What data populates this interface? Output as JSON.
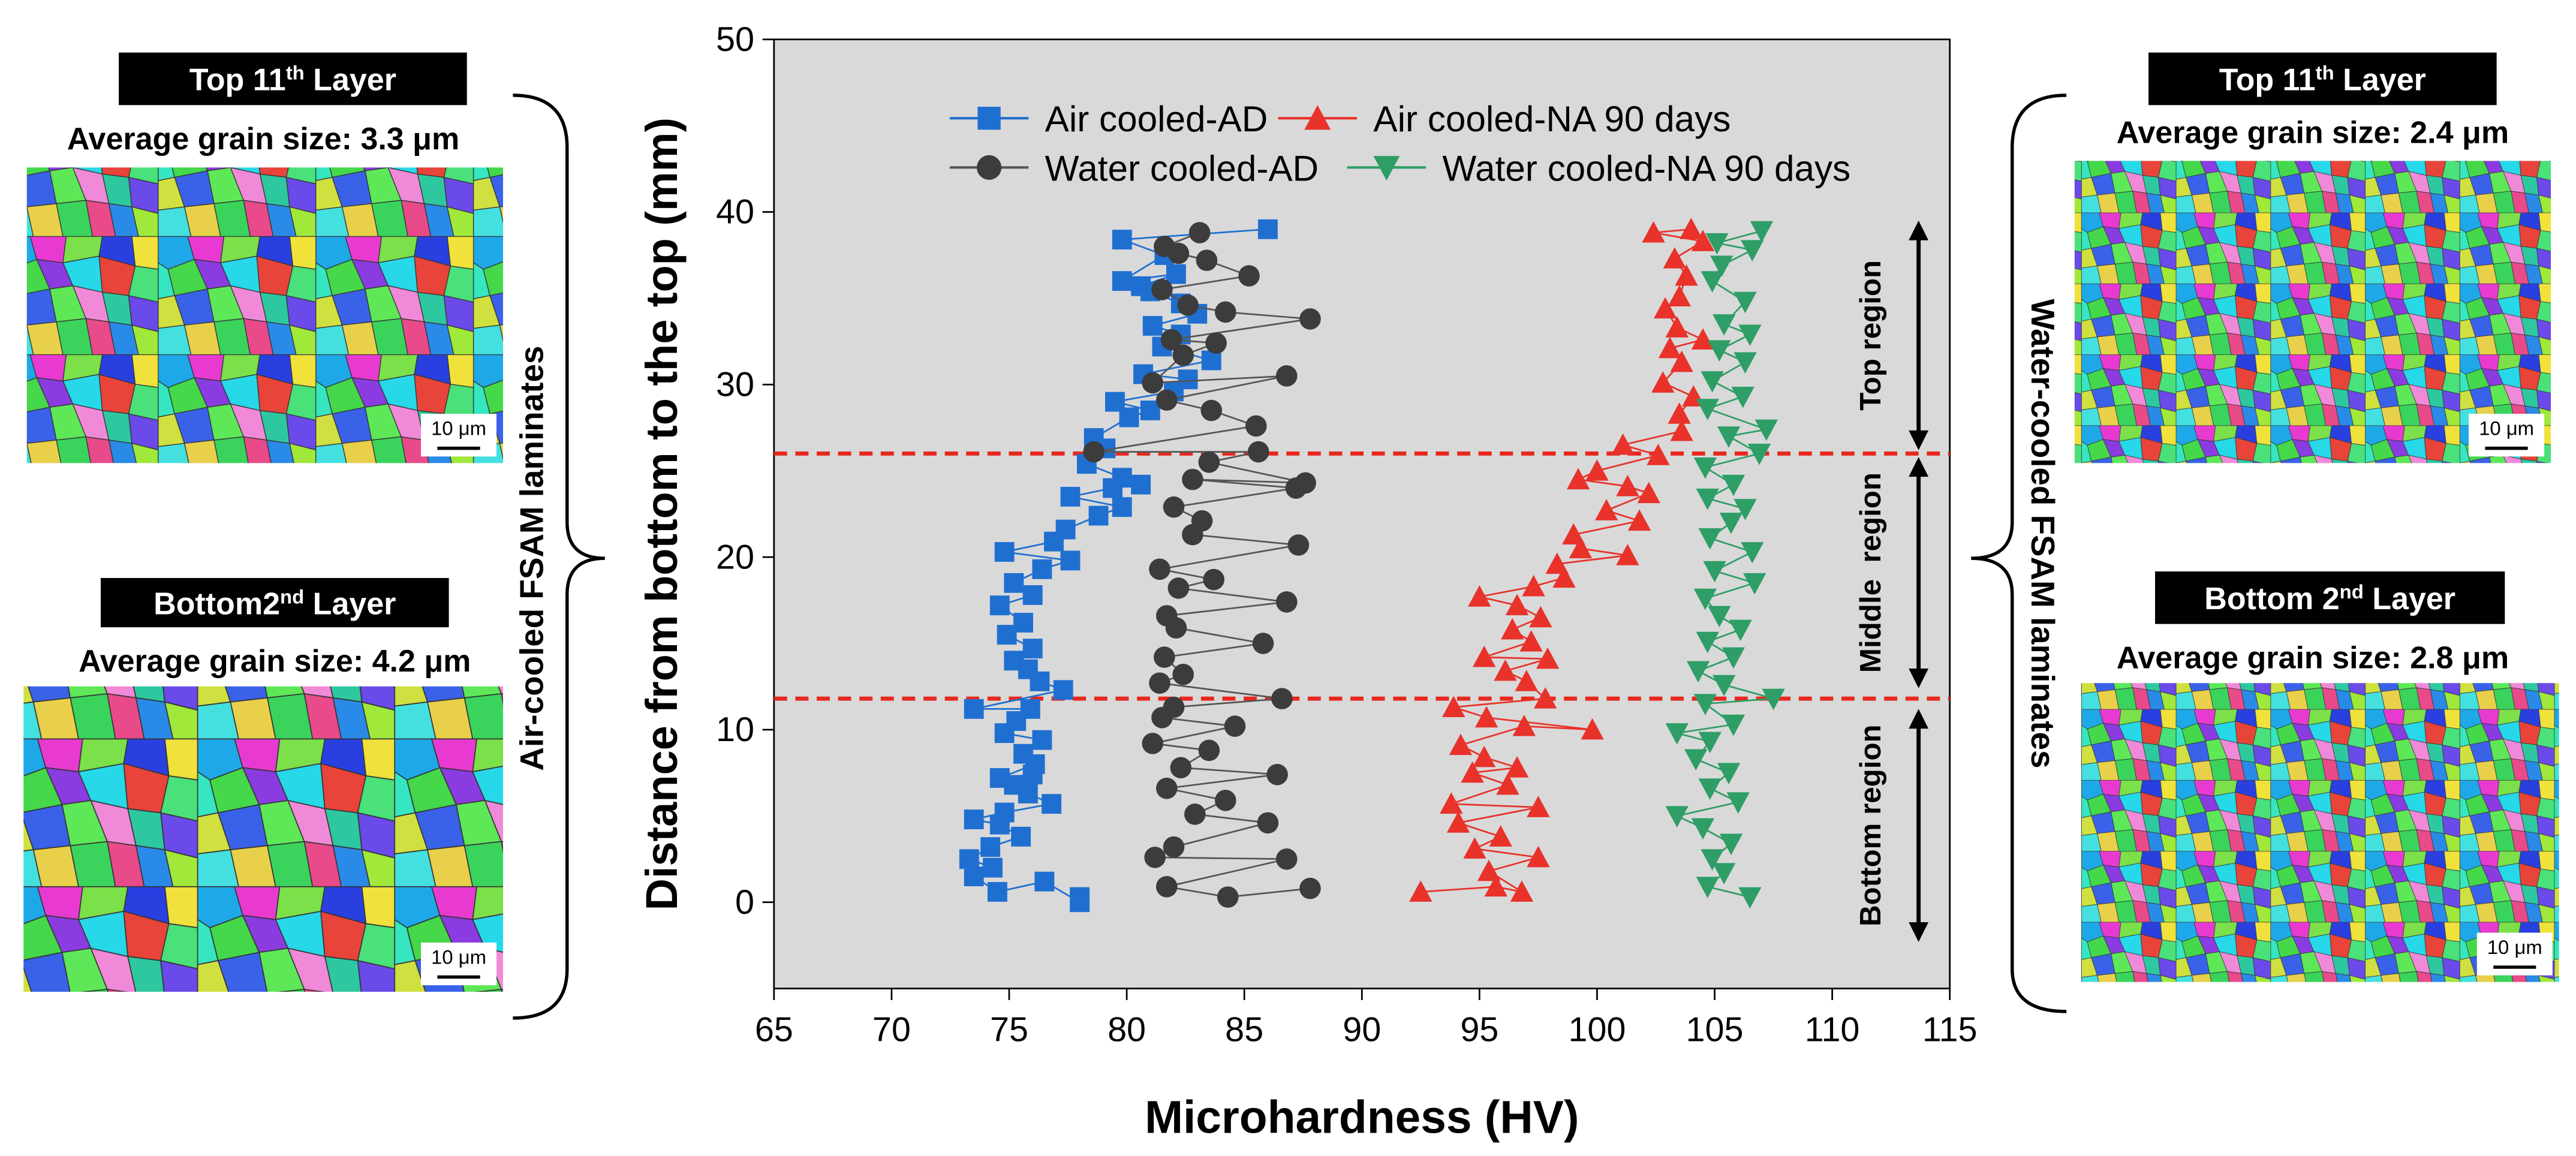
{
  "chart_data": {
    "type": "scatter",
    "x_label": "Microhardness (HV)",
    "y_label": "Distance from bottom to the top (mm)",
    "xlim": [
      65,
      115
    ],
    "xticks": [
      65,
      70,
      75,
      80,
      85,
      90,
      95,
      100,
      105,
      110,
      115
    ],
    "ylim": [
      -5,
      50
    ],
    "yticks": [
      0,
      10,
      20,
      30,
      40,
      50
    ],
    "background": "#d9d9d9",
    "legend": "top",
    "series": [
      {
        "name": "Air cooled-AD",
        "color": "#1f6fd1",
        "marker": "square",
        "x": [
          78,
          78,
          76.5,
          74.5,
          73.5,
          74.3,
          73.3,
          74.2,
          75.5,
          74.6,
          73.5,
          74.8,
          76.8,
          75.8,
          75.2,
          76,
          74.6,
          76.1,
          75.6,
          76.4,
          74.8,
          75.3,
          75.9,
          73.5,
          77.3,
          76.3,
          75.8,
          75.2,
          76,
          74.9,
          75.6,
          74.6,
          76,
          75.2,
          76.4,
          77.6,
          74.8,
          76.9,
          77.4,
          78.8,
          79.8,
          77.6,
          79.4,
          80.6,
          79.8,
          78.3,
          79.1,
          78.6,
          80.1,
          81,
          79.5,
          82,
          82.6,
          80.7,
          83.6,
          81.5,
          82.3,
          81.1,
          83,
          82.3,
          81,
          80.6,
          82.1,
          79.8,
          81.6,
          79.8,
          86
        ],
        "y": [
          0.3,
          0,
          1.2,
          0.6,
          1.5,
          2,
          2.5,
          3.2,
          3.8,
          4.5,
          4.8,
          5.2,
          5.7,
          6.3,
          6.8,
          7.4,
          7.2,
          8,
          8.6,
          9.4,
          9.8,
          10.5,
          11.2,
          11.2,
          12.3,
          12.8,
          13.5,
          14,
          14.7,
          15.5,
          16.2,
          17.2,
          17.8,
          18.5,
          19.3,
          19.8,
          20.3,
          20.9,
          21.6,
          22.4,
          22.9,
          23.5,
          24,
          24.2,
          24.6,
          25.4,
          26.3,
          26.9,
          28.1,
          28.5,
          29,
          29.6,
          30.3,
          30.6,
          31.4,
          32.2,
          32.9,
          33.4,
          34.1,
          34.7,
          35.4,
          35.7,
          36.4,
          36,
          37.5,
          38.4,
          39
        ]
      },
      {
        "name": "Air cooled-NA 90 days",
        "color": "#e8322a",
        "marker": "triangle",
        "x": [
          92.5,
          95.7,
          96.8,
          95.4,
          97.5,
          94.8,
          95.9,
          94.1,
          97.5,
          93.8,
          96.2,
          94.7,
          96.6,
          95.2,
          94.2,
          96.9,
          99.8,
          95.3,
          93.9,
          97.8,
          97,
          96.1,
          97.9,
          95.2,
          97.2,
          96.4,
          97.6,
          96.6,
          95,
          97.3,
          98.6,
          98.3,
          101.3,
          99.3,
          99,
          101.8,
          100.4,
          102.2,
          101.3,
          99.2,
          100,
          102.6,
          101.1,
          103.6,
          103.5,
          104.1,
          102.8,
          103.6,
          103.1,
          104.5,
          103.4,
          102.9,
          103.5,
          103.8,
          103.3,
          104.5,
          102.4,
          104
        ],
        "y": [
          0.6,
          0.9,
          0.6,
          1.8,
          2.6,
          3.1,
          3.8,
          4.6,
          5.5,
          5.7,
          6.8,
          7.5,
          7.8,
          8.4,
          9.1,
          10.2,
          10,
          10.7,
          11.3,
          11.8,
          12.8,
          13.4,
          14.1,
          14.2,
          15.1,
          15.8,
          16.5,
          17.2,
          17.7,
          18.3,
          18.8,
          19.6,
          20.1,
          20.5,
          21.3,
          22.1,
          22.7,
          23.7,
          24.1,
          24.5,
          25,
          25.9,
          26.5,
          27.3,
          28.3,
          29.3,
          30.1,
          31.3,
          32.1,
          32.6,
          33.3,
          34.4,
          35.1,
          36.3,
          37.3,
          38.3,
          38.8,
          39
        ]
      },
      {
        "name": "Water cooled-AD",
        "color": "#3c3c3c",
        "marker": "circle",
        "x": [
          87.8,
          84.3,
          81.7,
          86.8,
          81.2,
          82,
          86,
          82.9,
          84.2,
          81.7,
          86.4,
          82.3,
          83.5,
          81.1,
          84.6,
          81.5,
          82,
          86.6,
          81.4,
          82.4,
          81.6,
          85.8,
          82.1,
          81.7,
          86.8,
          82.2,
          83.7,
          81.4,
          87.3,
          82.8,
          83.2,
          82,
          87.2,
          82.8,
          87.6,
          83.5,
          85.6,
          78.6,
          85.5,
          83.6,
          81.7,
          86.8,
          81.1,
          82.4,
          83.8,
          81.9,
          87.8,
          84.2,
          82.6,
          81.5,
          85.2,
          83.4,
          82.2,
          81.6,
          83.1
        ],
        "y": [
          0.8,
          0.3,
          0.9,
          2.5,
          2.6,
          3.2,
          4.6,
          5.1,
          5.9,
          6.6,
          7.4,
          7.8,
          8.8,
          9.2,
          10.2,
          10.7,
          11.3,
          11.8,
          12.7,
          13.2,
          14.2,
          15,
          15.9,
          16.6,
          17.4,
          18.2,
          18.7,
          19.3,
          20.7,
          21.3,
          22.1,
          22.9,
          24,
          24.5,
          24.3,
          25.5,
          26.1,
          26.1,
          27.6,
          28.5,
          29.1,
          30.5,
          30.1,
          31.7,
          32.4,
          32.6,
          33.8,
          34.2,
          34.6,
          35.5,
          36.3,
          37.2,
          37.6,
          38,
          38.8
        ]
      },
      {
        "name": "Water cooled-NA 90 days",
        "color": "#2e9e66",
        "marker": "triangle-down",
        "x": [
          106.5,
          104.7,
          105.4,
          104.9,
          105.7,
          104.5,
          103.4,
          106,
          104.8,
          105.6,
          104.2,
          104.8,
          103.4,
          105.8,
          104.6,
          107.5,
          105.4,
          104.3,
          105.8,
          104.7,
          106.1,
          105.2,
          104.6,
          106.7,
          105,
          106.6,
          104.8,
          105.7,
          106.3,
          104.7,
          105.8,
          104.6,
          106.9,
          105.6,
          107.2,
          104.7,
          106.2,
          104.9,
          106.3,
          105.2,
          106.5,
          105.4,
          106.3,
          104.9,
          105.3,
          106.6,
          105.1,
          107
        ],
        "y": [
          0.3,
          0.9,
          1.7,
          2.5,
          3.4,
          4.3,
          5,
          5.8,
          6.6,
          7.5,
          8.3,
          9.3,
          9.8,
          10.3,
          11.5,
          11.8,
          12.6,
          13.4,
          14.2,
          15.1,
          15.8,
          16.6,
          17.6,
          18.5,
          19.2,
          20.3,
          21.1,
          22,
          22.8,
          23.4,
          24.2,
          25.2,
          26,
          27,
          27.4,
          28.6,
          29.3,
          30.2,
          31.3,
          32,
          32.9,
          33.5,
          34.8,
          36,
          36.9,
          37.8,
          38.2,
          38.9
        ]
      }
    ],
    "reference_lines": {
      "values": [
        26,
        11.8
      ],
      "color": "#e8281e"
    },
    "regions": [
      {
        "label": "Top region",
        "from": 26.2,
        "to": 39.5
      },
      {
        "label": "Middle  region",
        "from": 12.4,
        "to": 25.8
      },
      {
        "label": "Bottom region",
        "from": -2.3,
        "to": 11.2
      }
    ]
  },
  "panels": [
    {
      "title_parts": [
        "Top 11",
        "th",
        " Layer"
      ],
      "subtitle": "Average grain size: 3.3 μm",
      "scale_label": "10 μm"
    },
    {
      "title_parts": [
        "Bottom2",
        "nd",
        " Layer"
      ],
      "subtitle": "Average grain size: 4.2 μm",
      "scale_label": "10 μm"
    },
    {
      "title_parts": [
        "Top 11",
        "th",
        " Layer"
      ],
      "subtitle": "Average grain size: 2.4 μm",
      "scale_label": "10 μm"
    },
    {
      "title_parts": [
        "Bottom 2",
        "nd",
        " Layer"
      ],
      "subtitle": "Average grain size: 2.8 μm",
      "scale_label": "10 μm"
    }
  ],
  "side_labels": [
    "Air-cooled FSAM laminates",
    "Water-cooled FSAM laminates"
  ]
}
